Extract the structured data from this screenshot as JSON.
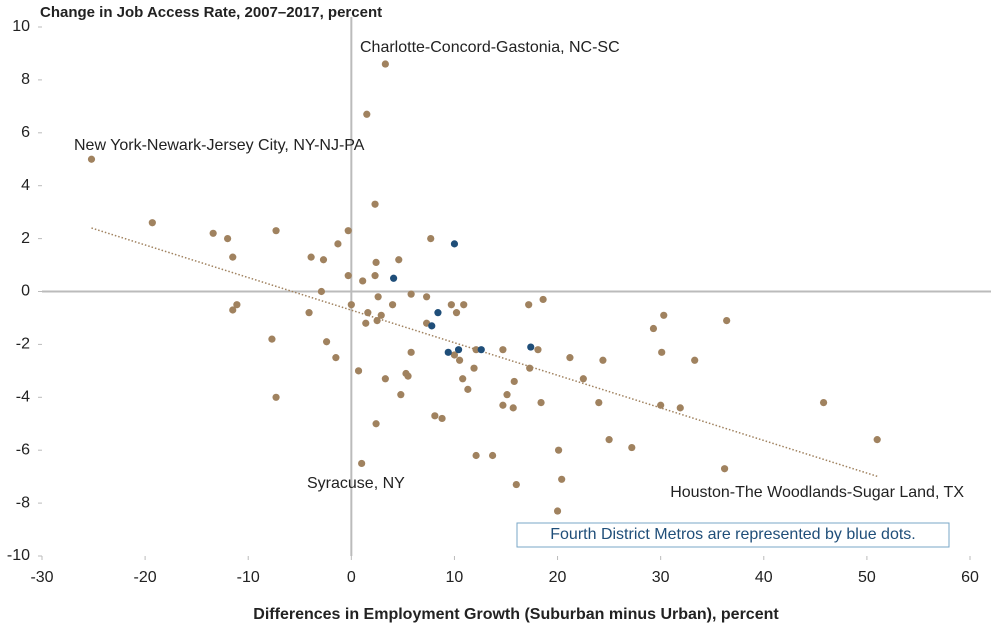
{
  "chart_data": {
    "type": "scatter",
    "y_label": "Change in Job Access Rate, 2007–2017, percent",
    "x_label": "Differences in Employment Growth (Suburban minus Urban), percent",
    "xlim": [
      -30,
      60
    ],
    "xticks": [
      -30,
      -20,
      -10,
      0,
      10,
      20,
      30,
      40,
      50,
      60
    ],
    "ylim": [
      -10,
      10
    ],
    "yticks": [
      -10,
      -8,
      -6,
      -4,
      -2,
      0,
      2,
      4,
      6,
      8,
      10
    ],
    "series": [
      {
        "color": "#a0825f",
        "x": [
          3.3,
          1.5,
          -25.2,
          2.3,
          -19.3,
          -13.4,
          -12.0,
          -7.3,
          -0.3,
          7.7,
          -11.5,
          -3.9,
          -2.7,
          -1.3,
          2.4,
          4.6,
          -0.3,
          2.3,
          1.1,
          -2.9,
          2.6,
          5.8,
          7.3,
          18.6,
          -11.1,
          -11.5,
          0.0,
          4.0,
          9.7,
          10.9,
          17.2,
          -4.1,
          1.6,
          2.9,
          10.2,
          7.3,
          1.4,
          2.5,
          30.3,
          29.3,
          36.4,
          -7.7,
          -2.4,
          -1.5,
          5.8,
          10.0,
          10.5,
          12.1,
          14.7,
          18.1,
          21.2,
          24.4,
          30.1,
          33.3,
          0.7,
          3.3,
          5.3,
          5.5,
          10.8,
          11.9,
          17.3,
          15.8,
          22.5,
          11.3,
          15.1,
          4.8,
          -7.3,
          18.4,
          24.0,
          14.7,
          15.7,
          30.0,
          31.9,
          45.8,
          8.1,
          8.8,
          2.4,
          51.0,
          25.0,
          27.2,
          20.1,
          12.1,
          13.7,
          36.2,
          1.0,
          20.4,
          16.0,
          20.0
        ],
        "y": [
          8.6,
          6.7,
          5.0,
          3.3,
          2.6,
          2.2,
          2.0,
          2.3,
          2.3,
          2.0,
          1.3,
          1.3,
          1.2,
          1.8,
          1.1,
          1.2,
          0.6,
          0.6,
          0.4,
          0.0,
          -0.2,
          -0.1,
          -0.2,
          -0.3,
          -0.5,
          -0.7,
          -0.5,
          -0.5,
          -0.5,
          -0.5,
          -0.5,
          -0.8,
          -0.8,
          -0.9,
          -0.8,
          -1.2,
          -1.2,
          -1.1,
          -0.9,
          -1.4,
          -1.1,
          -1.8,
          -1.9,
          -2.5,
          -2.3,
          -2.4,
          -2.6,
          -2.2,
          -2.2,
          -2.2,
          -2.5,
          -2.6,
          -2.3,
          -2.6,
          -3.0,
          -3.3,
          -3.1,
          -3.2,
          -3.3,
          -2.9,
          -2.9,
          -3.4,
          -3.3,
          -3.7,
          -3.9,
          -3.9,
          -4.0,
          -4.2,
          -4.2,
          -4.3,
          -4.4,
          -4.3,
          -4.4,
          -4.2,
          -4.7,
          -4.8,
          -5.0,
          -5.6,
          -5.6,
          -5.9,
          -6.0,
          -6.2,
          -6.2,
          -6.7,
          -6.5,
          -7.1,
          -7.3,
          -8.3
        ]
      },
      {
        "color": "#1f4e79",
        "x": [
          10.0,
          4.1,
          8.4,
          7.8,
          9.4,
          10.4,
          12.6,
          17.4
        ],
        "y": [
          1.8,
          0.5,
          -0.8,
          -1.3,
          -2.3,
          -2.2,
          -2.2,
          -2.1
        ]
      }
    ],
    "trendline": {
      "color": "#a0825f",
      "x": [
        -25.2,
        51.1
      ],
      "y": [
        2.4,
        -7.0
      ]
    },
    "annotations": [
      "Charlotte-Concord-Gastonia, NC-SC",
      "New York-Newark-Jersey City, NY-NJ-PA",
      "Syracuse, NY",
      "Houston-The Woodlands-Sugar Land, TX"
    ],
    "note": "Fourth District Metros are represented by blue dots."
  }
}
